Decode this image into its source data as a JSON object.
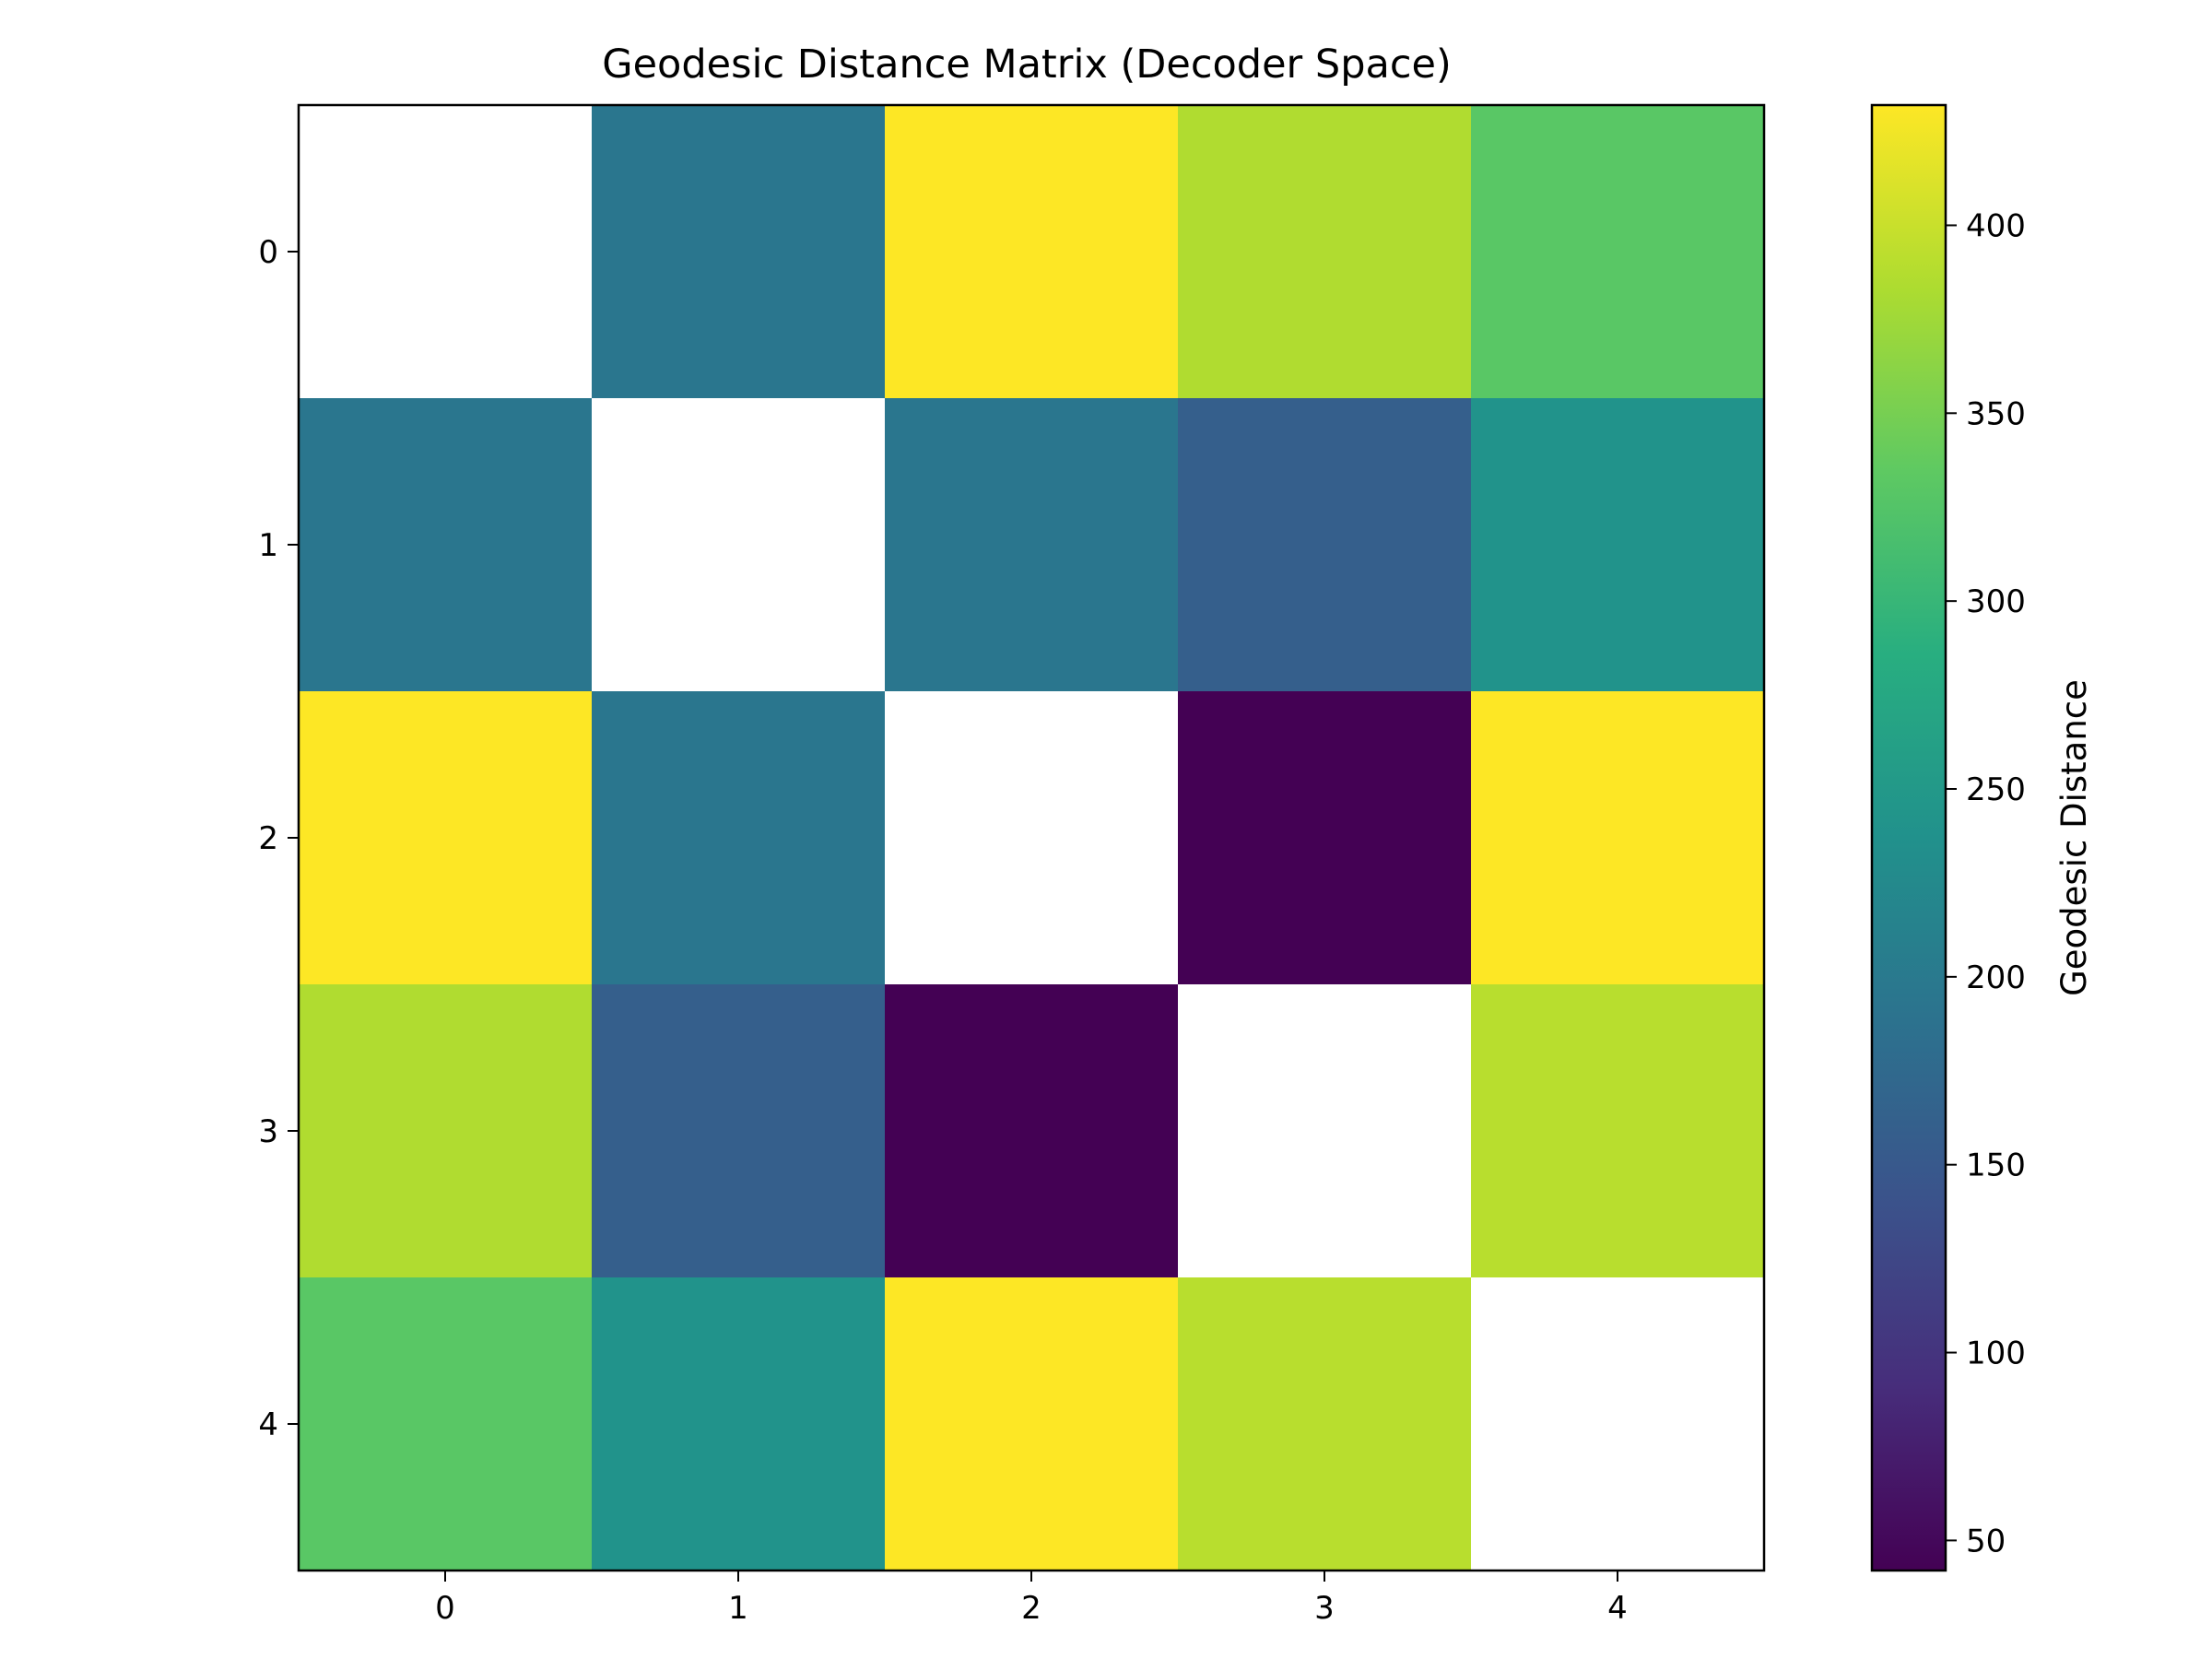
{
  "chart_data": {
    "type": "heatmap",
    "title": "Geodesic Distance Matrix (Decoder Space)",
    "xlabel": "",
    "ylabel": "",
    "x_ticks": [
      "0",
      "1",
      "2",
      "3",
      "4"
    ],
    "y_ticks": [
      "0",
      "1",
      "2",
      "3",
      "4"
    ],
    "values": [
      [
        null,
        195,
        432,
        385,
        330
      ],
      [
        195,
        null,
        195,
        160,
        240
      ],
      [
        432,
        195,
        null,
        42,
        432
      ],
      [
        385,
        160,
        42,
        null,
        390
      ],
      [
        330,
        240,
        432,
        390,
        null
      ]
    ],
    "diagonal": "blank",
    "colormap": "viridis",
    "colorbar": {
      "label": "Geodesic Distance",
      "min": 42,
      "max": 432,
      "ticks": [
        50,
        100,
        150,
        200,
        250,
        300,
        350,
        400
      ]
    },
    "grid": false
  }
}
